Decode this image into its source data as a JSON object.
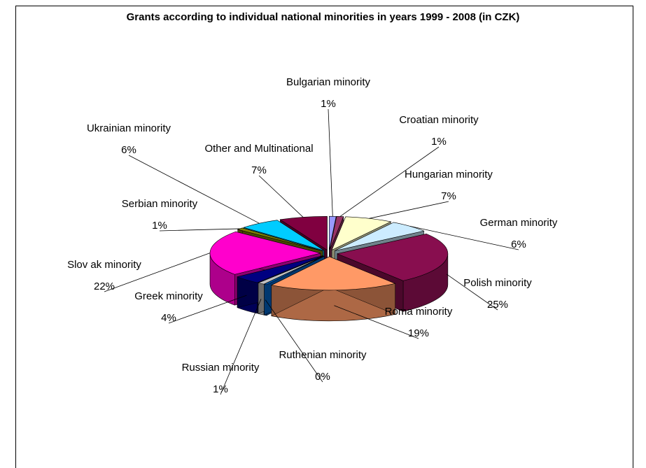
{
  "chart_data": {
    "type": "pie",
    "variant": "exploded-3d",
    "title": "Grants according to individual national minorities in years 1999 - 2008 (in CZK)",
    "slices": [
      {
        "name": "Bulgarian minority",
        "percent_label": "1%",
        "value": 1,
        "color": "#9999ff"
      },
      {
        "name": "Croatian minority",
        "percent_label": "1%",
        "value": 1,
        "color": "#993366"
      },
      {
        "name": "Hungarian minority",
        "percent_label": "7%",
        "value": 7,
        "color": "#ffffcc"
      },
      {
        "name": "German minority",
        "percent_label": "6%",
        "value": 6,
        "color": "#ccecff"
      },
      {
        "name": "Polish minority",
        "percent_label": "25%",
        "value": 25,
        "color": "#880e4f"
      },
      {
        "name": "Roma minority",
        "percent_label": "19%",
        "value": 19,
        "color": "#ff9966"
      },
      {
        "name": "Ruthenian minority",
        "percent_label": "0%",
        "value": 0.4,
        "color": "#0066cc"
      },
      {
        "name": "Russian minority",
        "percent_label": "1%",
        "value": 1,
        "color": "#c0c0c0"
      },
      {
        "name": "Greek minority",
        "percent_label": "4%",
        "value": 4,
        "color": "#000080"
      },
      {
        "name": "Slov ak minority",
        "percent_label": "22%",
        "value": 22,
        "color": "#ff00cc"
      },
      {
        "name": "Serbian minority",
        "percent_label": "1%",
        "value": 1,
        "color": "#808000"
      },
      {
        "name": "Ukrainian minority",
        "percent_label": "6%",
        "value": 6,
        "color": "#00ccff"
      },
      {
        "name": "Other and Multinational",
        "percent_label": "7%",
        "value": 7,
        "color": "#800040"
      }
    ]
  }
}
